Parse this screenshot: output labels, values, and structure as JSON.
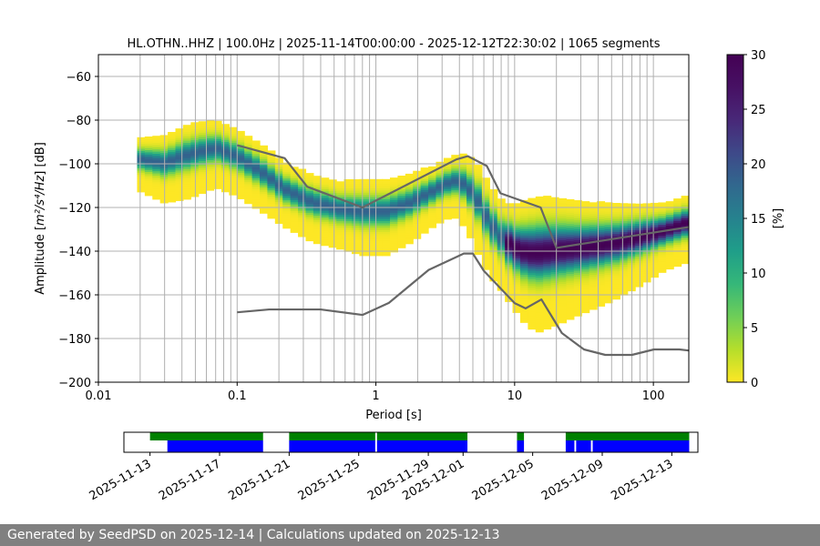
{
  "chart_data": [
    {
      "type": "heatmap",
      "title": "HL.OTHN..HHZ | 100.0Hz | 2025-11-14T00:00:00 - 2025-12-12T22:30:02 | 1065 segments",
      "xlabel": "Period [s]",
      "ylabel_prefix": "Amplitude [",
      "ylabel_math": "m²/s⁴/Hz",
      "ylabel_suffix": "] [dB]",
      "xscale": "log",
      "xlim": [
        0.01,
        180
      ],
      "ylim": [
        -200,
        -50
      ],
      "grid": true,
      "x_ticks": [
        0.01,
        0.1,
        1,
        10,
        100
      ],
      "x_tick_labels": [
        "0.01",
        "0.1",
        "1",
        "10",
        "100"
      ],
      "y_ticks": [
        -200,
        -180,
        -160,
        -140,
        -120,
        -100,
        -80,
        -60
      ],
      "y_tick_labels": [
        "−200",
        "−180",
        "−160",
        "−140",
        "−120",
        "−100",
        "−80",
        "−60"
      ],
      "psd_mode": {
        "period": [
          0.019,
          0.03,
          0.045,
          0.07,
          0.1,
          0.15,
          0.22,
          0.35,
          0.55,
          0.8,
          1.2,
          1.8,
          2.7,
          3.6,
          4.5,
          5.5,
          6.5,
          8,
          10,
          12.5,
          15,
          20,
          30,
          50,
          80,
          120,
          180
        ],
        "db": [
          -98,
          -100,
          -96,
          -93,
          -97,
          -104,
          -112,
          -118,
          -121,
          -122,
          -122,
          -118,
          -112,
          -108,
          -110,
          -118,
          -127,
          -134,
          -139,
          -141,
          -141,
          -140,
          -139,
          -137,
          -134,
          -131,
          -127
        ]
      },
      "spread_db": [
        14,
        18,
        20,
        18,
        18,
        18,
        17,
        18,
        18,
        20,
        20,
        18,
        16,
        16,
        20,
        24,
        24,
        24,
        28,
        34,
        36,
        34,
        30,
        26,
        22,
        18,
        18
      ],
      "series": [
        {
          "name": "NHNM",
          "period": [
            0.1,
            0.22,
            0.32,
            0.8,
            3.8,
            4.6,
            6.3,
            7.9,
            15.4,
            20,
            354.8
          ],
          "db": [
            -91.5,
            -97.4,
            -110.5,
            -120,
            -98,
            -96.5,
            -101,
            -113.5,
            -120,
            -138.5,
            -126
          ]
        },
        {
          "name": "NLNM",
          "period": [
            0.1,
            0.17,
            0.4,
            0.8,
            1.24,
            2.4,
            4.3,
            5,
            6,
            10,
            12,
            15.6,
            21.9,
            31.6,
            45,
            70,
            101,
            154,
            180
          ],
          "db": [
            -168,
            -166.7,
            -166.7,
            -169.2,
            -163.7,
            -148.6,
            -141.1,
            -141.1,
            -149,
            -163.8,
            -166.2,
            -162.1,
            -177.5,
            -185,
            -187.5,
            -187.5,
            -185,
            -185,
            -185.5
          ]
        }
      ],
      "colorbar": {
        "label": "[%]",
        "min": 0,
        "max": 30,
        "ticks": [
          0,
          5,
          10,
          15,
          20,
          25,
          30
        ],
        "tick_labels": [
          "0",
          "5",
          "10",
          "15",
          "20",
          "25",
          "30"
        ]
      }
    },
    {
      "type": "timeline",
      "date_ticks": [
        "2025-11-13",
        "2025-11-17",
        "2025-11-21",
        "2025-11-25",
        "2025-11-29",
        "2025-12-01",
        "2025-12-05",
        "2025-12-09",
        "2025-12-13"
      ],
      "tick_day_offsets": [
        0,
        4,
        8,
        12,
        16,
        18,
        22,
        26,
        30
      ],
      "time_range_days": [
        -1.5,
        31.5
      ],
      "data_available_days": [
        [
          0.0,
          6.5
        ],
        [
          8.0,
          12.95
        ],
        [
          13.05,
          18.25
        ],
        [
          21.1,
          21.5
        ],
        [
          23.9,
          31.0
        ]
      ],
      "psd_used_days": [
        [
          1.0,
          6.5
        ],
        [
          8.0,
          12.95
        ],
        [
          13.05,
          18.25
        ],
        [
          21.1,
          21.5
        ],
        [
          23.9,
          24.4
        ],
        [
          24.5,
          25.35
        ],
        [
          25.45,
          31.0
        ]
      ]
    }
  ],
  "colors": {
    "nlnm_nhnm": "#666666",
    "data_available": "#008000",
    "psd_used": "#0000ff",
    "grid": "#b0b0b0",
    "footer_bg": "#808080"
  },
  "footer": {
    "text": "Generated by SeedPSD on 2025-12-14 | Calculations updated on 2025-12-13"
  }
}
